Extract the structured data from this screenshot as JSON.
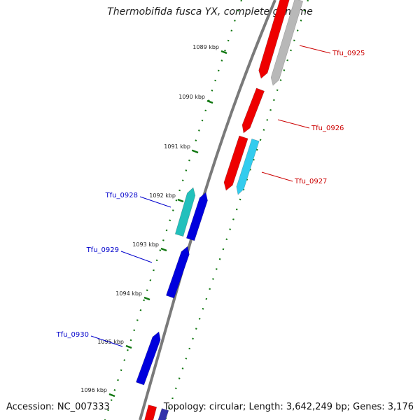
{
  "title": "Thermobifida fusca YX, complete genome",
  "accession": "Accession: NC_007333",
  "summary": "Topology: circular; Length: 3,642,249 bp; Genes: 3,176",
  "colors": {
    "forward_gene": "#ee0000",
    "reverse_gene": "#0000dd",
    "forward_alt": "#33ccee",
    "reverse_alt": "#22c0bc",
    "pseudo_gene": "#b8b8b8",
    "backbone": "#777777",
    "ticks": "#117711",
    "forward_label": "#cc0000",
    "reverse_label": "#0000cc"
  },
  "ruler": [
    {
      "label": "1089 kbp"
    },
    {
      "label": "1090 kbp"
    },
    {
      "label": "1091 kbp"
    },
    {
      "label": "1092 kbp"
    },
    {
      "label": "1093 kbp"
    },
    {
      "label": "1094 kbp"
    },
    {
      "label": "1095 kbp"
    },
    {
      "label": "1096 kbp"
    }
  ],
  "genes": [
    {
      "label": "Tfu_0925",
      "strand": "forward"
    },
    {
      "label": "Tfu_0926",
      "strand": "forward"
    },
    {
      "label": "Tfu_0927",
      "strand": "forward"
    },
    {
      "label": "Tfu_0928",
      "strand": "reverse"
    },
    {
      "label": "Tfu_0929",
      "strand": "reverse"
    },
    {
      "label": "Tfu_0930",
      "strand": "reverse"
    }
  ]
}
